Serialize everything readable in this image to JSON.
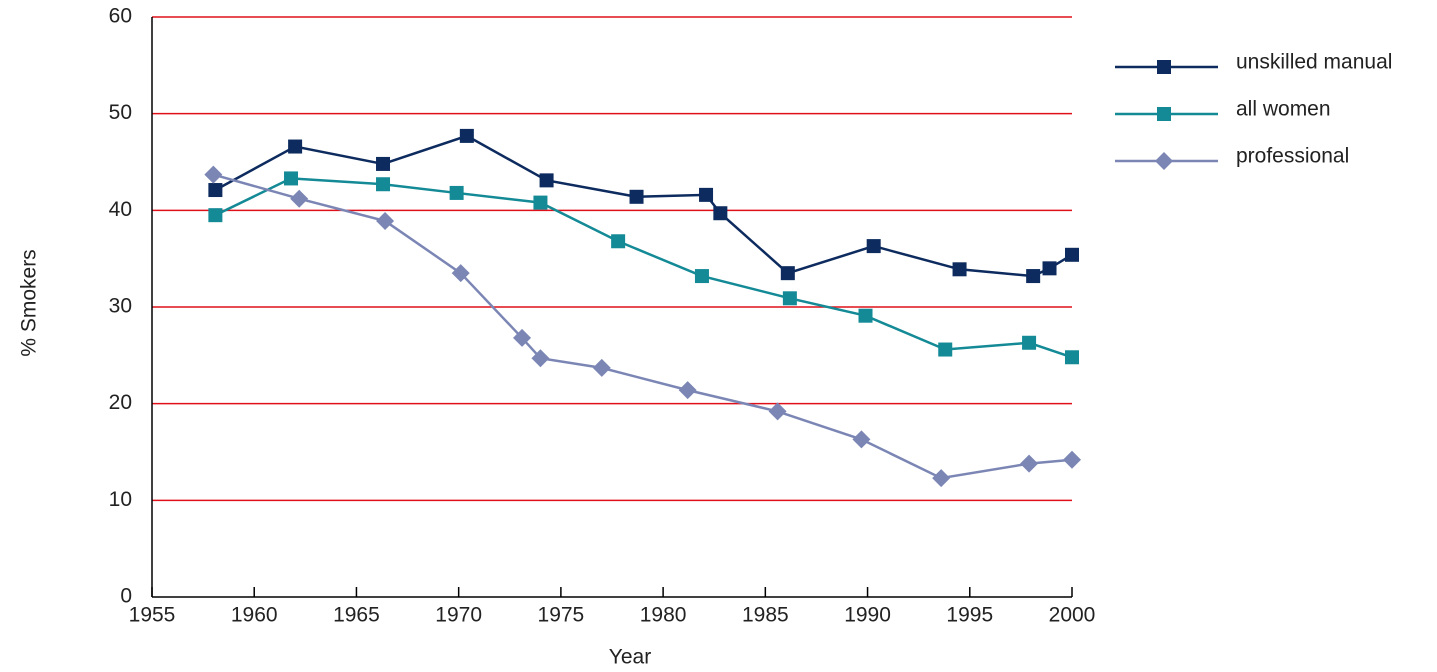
{
  "chart_data": {
    "type": "line",
    "x_label": "Year",
    "y_label": "% Smokers",
    "xlim": [
      1955,
      2000
    ],
    "xticks": [
      1955,
      1960,
      1965,
      1970,
      1975,
      1980,
      1985,
      1990,
      1995,
      2000
    ],
    "ylim": [
      0,
      60
    ],
    "yticks": [
      0,
      10,
      20,
      30,
      40,
      50,
      60
    ],
    "grid": true,
    "grid_color": "#e0101a",
    "legend": "top-right",
    "series": [
      {
        "name": "unskilled manual",
        "color": "#0d2b5e",
        "marker": "square",
        "x": [
          1958.1,
          1962.0,
          1966.3,
          1970.4,
          1974.3,
          1978.7,
          1982.1,
          1982.8,
          1986.1,
          1990.3,
          1994.5,
          1998.1,
          1998.9,
          2000
        ],
        "values": [
          42.1,
          46.6,
          44.8,
          47.7,
          43.1,
          41.4,
          41.6,
          39.7,
          33.5,
          36.3,
          33.9,
          33.2,
          34.0,
          35.4
        ]
      },
      {
        "name": "all women",
        "color": "#138a96",
        "marker": "square",
        "x": [
          1958.1,
          1961.8,
          1966.3,
          1969.9,
          1974.0,
          1977.8,
          1981.9,
          1986.2,
          1989.9,
          1993.8,
          1997.9,
          2000
        ],
        "values": [
          39.5,
          43.3,
          42.7,
          41.8,
          40.8,
          36.8,
          33.2,
          30.9,
          29.1,
          25.6,
          26.3,
          24.8
        ]
      },
      {
        "name": "professional",
        "color": "#7b86b5",
        "marker": "diamond",
        "x": [
          1958.0,
          1962.2,
          1966.4,
          1970.1,
          1973.1,
          1974.0,
          1977.0,
          1981.2,
          1985.6,
          1989.7,
          1993.6,
          1997.9,
          2000
        ],
        "values": [
          43.7,
          41.2,
          38.9,
          33.5,
          26.8,
          24.7,
          23.7,
          21.4,
          19.2,
          16.3,
          12.3,
          13.8,
          14.2
        ]
      }
    ]
  }
}
